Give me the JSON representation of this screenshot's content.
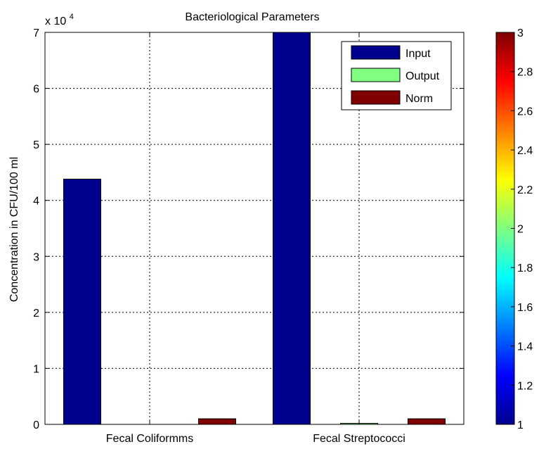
{
  "chart_data": {
    "type": "bar",
    "title": "Bacteriological Parameters",
    "xlabel": "",
    "ylabel": "Concentration in CFU/100 ml",
    "y_multiplier": {
      "prefix": "x 10",
      "exponent": "4"
    },
    "categories": [
      "Fecal Coliformms",
      "Fecal Streptococci"
    ],
    "series": [
      {
        "name": "Input",
        "color": "#00008f",
        "values": [
          43800,
          70000
        ]
      },
      {
        "name": "Output",
        "color": "#80ff80",
        "values": [
          0,
          180
        ]
      },
      {
        "name": "Norm",
        "color": "#800000",
        "values": [
          1000,
          1000
        ]
      }
    ],
    "ylim": [
      0,
      70000
    ],
    "yticks": [
      0,
      10000,
      20000,
      30000,
      40000,
      50000,
      60000,
      70000
    ],
    "ytick_labels": [
      "0",
      "1",
      "2",
      "3",
      "4",
      "5",
      "6",
      "7"
    ],
    "grid": true,
    "legend_position": "top-right",
    "colorbar": {
      "range": [
        1,
        3
      ],
      "ticks": [
        1,
        1.2,
        1.4,
        1.6,
        1.8,
        2,
        2.2,
        2.4,
        2.6,
        2.8,
        3
      ],
      "tick_labels": [
        "1",
        "1.2",
        "1.4",
        "1.6",
        "1.8",
        "2",
        "2.2",
        "2.4",
        "2.6",
        "2.8",
        "3"
      ],
      "colormap": "jet",
      "position": "right"
    }
  }
}
